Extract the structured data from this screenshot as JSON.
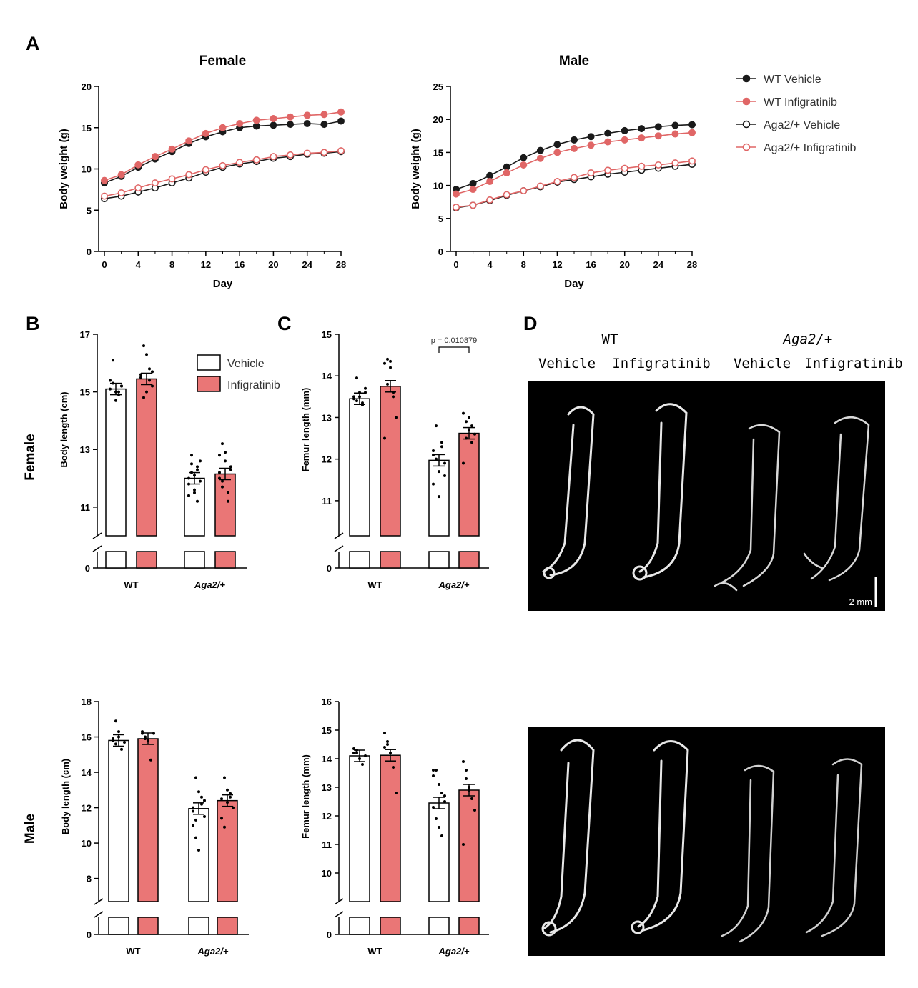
{
  "panels": {
    "A": "A",
    "B": "B",
    "C": "C",
    "D": "D"
  },
  "row_labels": {
    "female": "Female",
    "male": "Male"
  },
  "colors": {
    "wt": "#1a1a1a",
    "infig": "#e06666",
    "bar_fill": "#ea7676",
    "hollow": "#ffffff"
  },
  "legend_a": {
    "items": [
      {
        "label": "WT Vehicle",
        "color": "#1a1a1a",
        "filled": true
      },
      {
        "label": "WT Infigratinib",
        "color": "#e06666",
        "filled": true
      },
      {
        "label": "Aga2/+ Vehicle",
        "color": "#1a1a1a",
        "filled": false
      },
      {
        "label": "Aga2/+ Infigratinib",
        "color": "#e06666",
        "filled": false
      }
    ]
  },
  "legend_b": {
    "vehicle": "Vehicle",
    "infig": "Infigratinib"
  },
  "images": {
    "wt": "WT",
    "aga": "Aga2/+",
    "cols": [
      "Vehicle",
      "Infigratinib",
      "Vehicle",
      "Infigratinib"
    ],
    "scalebar": "2 mm"
  },
  "chart_data": [
    {
      "id": "A-female",
      "type": "line",
      "title": "Female",
      "xlabel": "Day",
      "ylabel": "Body  weight (g)",
      "xlim": [
        0,
        28
      ],
      "ylim": [
        0,
        20
      ],
      "x": [
        0,
        2,
        4,
        6,
        8,
        10,
        12,
        14,
        16,
        18,
        20,
        22,
        24,
        26,
        28
      ],
      "xticks": [
        0,
        4,
        8,
        12,
        16,
        20,
        24,
        28
      ],
      "yticks": [
        0,
        5,
        10,
        15,
        20
      ],
      "series": [
        {
          "name": "WT Vehicle",
          "values": [
            8.3,
            9.1,
            10.2,
            11.2,
            12.1,
            13.1,
            13.9,
            14.5,
            15.0,
            15.2,
            15.3,
            15.4,
            15.5,
            15.4,
            15.8
          ]
        },
        {
          "name": "WT Infigratinib",
          "values": [
            8.6,
            9.3,
            10.5,
            11.5,
            12.4,
            13.4,
            14.3,
            15.0,
            15.5,
            15.9,
            16.1,
            16.3,
            16.5,
            16.6,
            16.9
          ]
        },
        {
          "name": "Aga2/+ Vehicle",
          "values": [
            6.4,
            6.7,
            7.2,
            7.7,
            8.3,
            8.9,
            9.6,
            10.2,
            10.6,
            10.9,
            11.3,
            11.5,
            11.8,
            11.9,
            12.1
          ]
        },
        {
          "name": "Aga2/+ Infigratinib",
          "values": [
            6.7,
            7.1,
            7.7,
            8.3,
            8.8,
            9.3,
            9.9,
            10.4,
            10.8,
            11.1,
            11.5,
            11.7,
            11.9,
            12.0,
            12.2
          ]
        }
      ]
    },
    {
      "id": "A-male",
      "type": "line",
      "title": "Male",
      "xlabel": "Day",
      "ylabel": "Body weight (g)",
      "xlim": [
        0,
        28
      ],
      "ylim": [
        0,
        25
      ],
      "x": [
        0,
        2,
        4,
        6,
        8,
        10,
        12,
        14,
        16,
        18,
        20,
        22,
        24,
        26,
        28
      ],
      "xticks": [
        0,
        4,
        8,
        12,
        16,
        20,
        24,
        28
      ],
      "yticks": [
        0,
        5,
        10,
        15,
        20,
        25
      ],
      "series": [
        {
          "name": "WT Vehicle",
          "values": [
            9.4,
            10.3,
            11.5,
            12.8,
            14.2,
            15.3,
            16.2,
            16.9,
            17.4,
            17.9,
            18.3,
            18.6,
            18.9,
            19.1,
            19.2
          ]
        },
        {
          "name": "WT Infigratinib",
          "values": [
            8.7,
            9.4,
            10.6,
            11.9,
            13.1,
            14.1,
            15.0,
            15.6,
            16.1,
            16.6,
            16.9,
            17.2,
            17.5,
            17.8,
            18.0
          ]
        },
        {
          "name": "Aga2/+ Vehicle",
          "values": [
            6.6,
            7.0,
            7.7,
            8.5,
            9.2,
            9.8,
            10.5,
            10.9,
            11.3,
            11.7,
            12.0,
            12.3,
            12.6,
            12.9,
            13.2
          ]
        },
        {
          "name": "Aga2/+ Infigratinib",
          "values": [
            6.7,
            7.0,
            7.8,
            8.6,
            9.2,
            9.9,
            10.6,
            11.2,
            11.9,
            12.3,
            12.6,
            12.9,
            13.1,
            13.4,
            13.7
          ]
        }
      ]
    },
    {
      "id": "B-female",
      "type": "bar",
      "ylabel": "Body length (cm)",
      "categories": [
        "WT",
        "Aga2/+"
      ],
      "yticks": [
        11,
        13,
        15,
        17
      ],
      "ybreak_zero": "0",
      "ylim": [
        10.5,
        17
      ],
      "series": [
        {
          "name": "Vehicle",
          "values": [
            15.1,
            12.0
          ]
        },
        {
          "name": "Infigratinib",
          "values": [
            15.45,
            12.15
          ]
        }
      ],
      "points": [
        [
          15.1,
          15.3,
          15.0,
          14.9,
          15.2,
          15.4,
          16.1,
          14.7,
          15.0,
          15.2
        ],
        [
          15.5,
          16.6,
          16.3,
          15.8,
          15.2,
          15.6,
          14.8,
          15.0,
          15.4,
          15.7
        ],
        [
          12.0,
          12.5,
          11.6,
          12.3,
          11.9,
          11.4,
          12.8,
          12.1,
          11.2,
          12.6,
          11.8,
          12.2,
          11.5,
          12.4
        ],
        [
          12.2,
          13.2,
          12.9,
          11.5,
          12.4,
          12.0,
          11.7,
          12.6,
          11.2,
          12.3,
          12.8,
          11.9
        ]
      ]
    },
    {
      "id": "C-female",
      "type": "bar",
      "ylabel": "Femur length (mm)",
      "categories": [
        "WT",
        "Aga2/+"
      ],
      "yticks": [
        11,
        12,
        13,
        14,
        15
      ],
      "ybreak_zero": "0",
      "ylim": [
        10.5,
        15
      ],
      "annotation": "p = 0.010879",
      "series": [
        {
          "name": "Vehicle",
          "values": [
            13.45,
            11.97
          ]
        },
        {
          "name": "Infigratinib",
          "values": [
            13.75,
            12.62
          ]
        }
      ],
      "points": [
        [
          13.5,
          13.4,
          13.6,
          13.3,
          13.7,
          13.45,
          13.95,
          13.5,
          13.35,
          13.6
        ],
        [
          14.3,
          14.4,
          14.2,
          13.5,
          13.0,
          12.5,
          13.8,
          14.35,
          13.6
        ],
        [
          12.2,
          12.8,
          11.7,
          12.3,
          11.9,
          11.4,
          12.0,
          11.1,
          12.4,
          11.6,
          12.1
        ],
        [
          13.1,
          12.9,
          12.7,
          12.4,
          12.6,
          11.9,
          12.5,
          13.0,
          12.8
        ]
      ]
    },
    {
      "id": "B-male",
      "type": "bar",
      "ylabel": "Body length (cm)",
      "categories": [
        "WT",
        "Aga2/+"
      ],
      "yticks": [
        8,
        10,
        12,
        14,
        16,
        18
      ],
      "ybreak_zero": "0",
      "ylim": [
        7.5,
        18
      ],
      "series": [
        {
          "name": "Vehicle",
          "values": [
            15.8,
            11.95
          ]
        },
        {
          "name": "Infigratinib",
          "values": [
            15.9,
            12.4
          ]
        }
      ],
      "points": [
        [
          15.8,
          16.9,
          16.3,
          15.3,
          15.7,
          15.9,
          15.6,
          16.0
        ],
        [
          16.3,
          16.0,
          15.8,
          14.7,
          16.2,
          16.2,
          15.9
        ],
        [
          12.0,
          13.7,
          12.9,
          12.6,
          11.5,
          11.0,
          10.3,
          9.6,
          12.2,
          12.4,
          11.8,
          11.3
        ],
        [
          12.5,
          13.7,
          13.0,
          12.8,
          12.0,
          11.4,
          10.9,
          12.3,
          12.6
        ]
      ]
    },
    {
      "id": "C-male",
      "type": "bar",
      "ylabel": "Femur length (mm)",
      "categories": [
        "WT",
        "Aga2/+"
      ],
      "yticks": [
        10,
        11,
        12,
        13,
        14,
        15,
        16
      ],
      "ybreak_zero": "0",
      "ylim": [
        9.5,
        16
      ],
      "series": [
        {
          "name": "Vehicle",
          "values": [
            14.1,
            12.45
          ]
        },
        {
          "name": "Infigratinib",
          "values": [
            14.12,
            12.9
          ]
        }
      ],
      "points": [
        [
          14.2,
          14.3,
          14.0,
          13.8,
          14.1,
          14.35,
          14.2
        ],
        [
          14.9,
          14.5,
          14.2,
          13.7,
          12.8,
          14.4,
          14.6
        ],
        [
          13.6,
          13.6,
          13.1,
          12.8,
          12.5,
          12.3,
          11.9,
          11.6,
          11.3,
          12.7,
          13.4
        ],
        [
          13.9,
          13.6,
          13.0,
          12.6,
          12.2,
          11.0,
          13.3,
          12.9
        ]
      ]
    }
  ]
}
